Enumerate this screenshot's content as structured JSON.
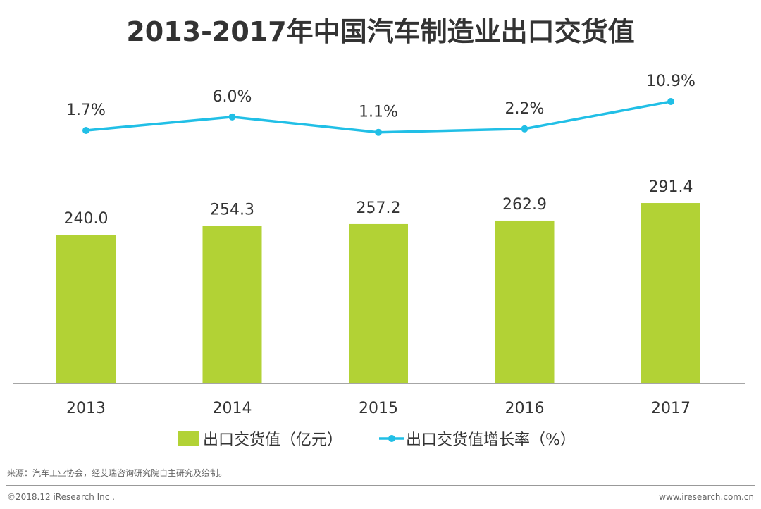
{
  "chart_data": {
    "type": "bar+line",
    "title": "2013-2017年中国汽车制造业出口交货值",
    "categories": [
      "2013",
      "2014",
      "2015",
      "2016",
      "2017"
    ],
    "series": [
      {
        "name": "出口交货值（亿元）",
        "type": "bar",
        "color": "#b2d235",
        "values": [
          240.0,
          254.3,
          257.2,
          262.9,
          291.4
        ],
        "labels": [
          "240.0",
          "254.3",
          "257.2",
          "262.9",
          "291.4"
        ]
      },
      {
        "name": "出口交货值增长率（%）",
        "type": "line",
        "color": "#21bfe6",
        "values": [
          1.7,
          6.0,
          1.1,
          2.2,
          10.9
        ],
        "labels": [
          "1.7%",
          "6.0%",
          "1.1%",
          "2.2%",
          "10.9%"
        ]
      }
    ],
    "ylim": [
      0,
      300
    ],
    "legend_position": "bottom",
    "grid": false
  },
  "footer": {
    "source": "来源：汽车工业协会，经艾瑞咨询研究院自主研究及绘制。",
    "copyright": "©2018.12 iResearch Inc .",
    "website": "www.iresearch.com.cn"
  }
}
